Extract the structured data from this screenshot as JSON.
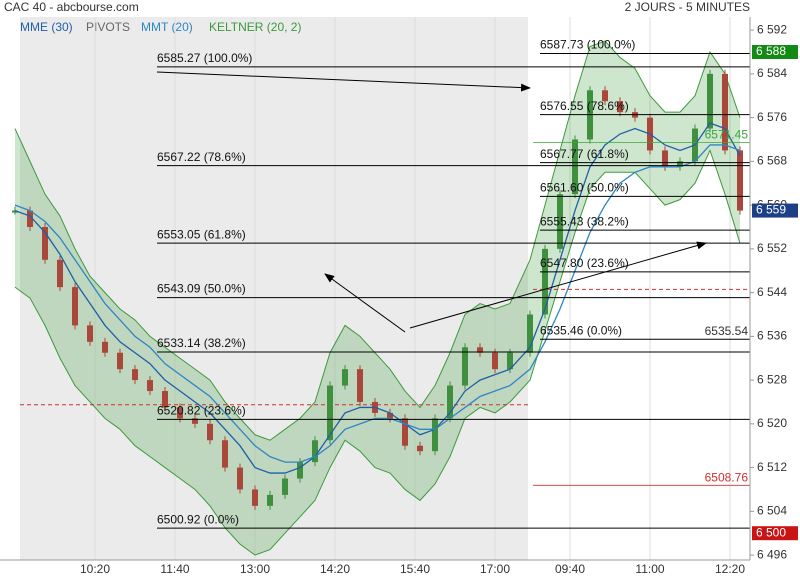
{
  "chart_data": {
    "type": "candlestick",
    "title": "CAC 40 - abcbourse.com",
    "subtitle": "2 JOURS - 5 MINUTES",
    "pivots_label": "PIVOTS",
    "up_color": "#3f8f3f",
    "down_color": "#a8473a",
    "x": [
      0,
      3,
      6,
      9,
      12,
      15,
      18,
      21,
      24,
      27,
      30,
      33,
      36,
      39,
      42,
      45,
      48,
      51,
      54,
      57,
      60,
      63,
      66,
      69,
      72,
      75,
      78,
      81,
      84,
      87,
      90,
      93,
      96,
      99,
      103,
      106,
      109,
      112,
      115,
      118,
      121,
      124,
      127,
      130,
      133,
      136,
      139,
      142,
      145
    ],
    "close": [
      6559,
      6556,
      6550,
      6545,
      6538,
      6535,
      6533,
      6530,
      6528,
      6526,
      6523,
      6521,
      6520,
      6517,
      6512,
      6508,
      6505,
      6507,
      6510,
      6513,
      6517,
      6527,
      6530,
      6524,
      6522,
      6521,
      6516,
      6515,
      6521,
      6527,
      6534,
      6533,
      6530,
      6533,
      6540,
      6552,
      6562,
      6572,
      6581,
      6579,
      6577,
      6576,
      6570,
      6567,
      6568,
      6574,
      6584,
      6570,
      6559
    ],
    "keltner": {
      "name": "KELTNER (20, 2)",
      "color": "#3c9a3c",
      "upper": [
        6574,
        6568,
        6562,
        6558,
        6552,
        6547,
        6544,
        6541,
        6539,
        6536,
        6534,
        6532,
        6530,
        6528,
        6524,
        6521,
        6518,
        6517,
        6519,
        6521,
        6524,
        6533,
        6538,
        6536,
        6533,
        6530,
        6526,
        6523,
        6527,
        6533,
        6540,
        6542,
        6541,
        6542,
        6550,
        6560,
        6570,
        6580,
        6589,
        6590,
        6587,
        6585,
        6580,
        6577,
        6577,
        6580,
        6588,
        6584,
        6576
      ],
      "lower": [
        6545,
        6543,
        6538,
        6532,
        6527,
        6524,
        6521,
        6519,
        6516,
        6514,
        6512,
        6510,
        6508,
        6505,
        6501,
        6498,
        6496,
        6497,
        6500,
        6503,
        6506,
        6512,
        6517,
        6515,
        6512,
        6511,
        6508,
        6506,
        6509,
        6514,
        6521,
        6523,
        6522,
        6524,
        6528,
        6537,
        6546,
        6555,
        6563,
        6566,
        6566,
        6566,
        6563,
        6560,
        6561,
        6564,
        6570,
        6562,
        6553
      ]
    },
    "series": [
      {
        "name": "MME (30)",
        "color": "#1f5fa8",
        "values": [
          6559,
          6558,
          6555,
          6551,
          6546,
          6542,
          6538,
          6535,
          6533,
          6531,
          6528,
          6526,
          6524,
          6522,
          6519,
          6516,
          6512,
          6511,
          6511,
          6512,
          6514,
          6518,
          6522,
          6523,
          6523,
          6522,
          6520,
          6518,
          6519,
          6522,
          6526,
          6528,
          6529,
          6530,
          6534,
          6541,
          6550,
          6559,
          6567,
          6571,
          6573,
          6574,
          6573,
          6571,
          6570,
          6571,
          6575,
          6574,
          6569
        ]
      },
      {
        "name": "MMT (20)",
        "color": "#2f86c4",
        "values": [
          6560,
          6559,
          6557,
          6554,
          6550,
          6546,
          6542,
          6539,
          6536,
          6534,
          6531,
          6529,
          6527,
          6525,
          6522,
          6519,
          6516,
          6514,
          6513,
          6513,
          6514,
          6516,
          6519,
          6520,
          6521,
          6521,
          6520,
          6519,
          6519,
          6521,
          6523,
          6525,
          6526,
          6527,
          6530,
          6535,
          6541,
          6548,
          6555,
          6560,
          6564,
          6566,
          6567,
          6567,
          6567,
          6568,
          6571,
          6571,
          6570
        ]
      }
    ],
    "fib_day1": [
      {
        "value": 6585.27,
        "label": "6585.27 (100.0%)"
      },
      {
        "value": 6567.22,
        "label": "6567.22 (78.6%)"
      },
      {
        "value": 6553.05,
        "label": "6553.05 (61.8%)"
      },
      {
        "value": 6543.09,
        "label": "6543.09 (50.0%)"
      },
      {
        "value": 6533.14,
        "label": "6533.14 (38.2%)"
      },
      {
        "value": 6520.82,
        "label": "6520.82 (23.6%)"
      },
      {
        "value": 6500.92,
        "label": "6500.92 (0.0%)"
      }
    ],
    "fib_day2": [
      {
        "value": 6587.73,
        "label": "6587.73 (100.0%)"
      },
      {
        "value": 6576.55,
        "label": "6576.55 (78.6%)"
      },
      {
        "value": 6567.77,
        "label": "6567.77 (61.8%)"
      },
      {
        "value": 6561.6,
        "label": "6561.60 (50.0%)"
      },
      {
        "value": 6555.43,
        "label": "6555.43 (38.2%)"
      },
      {
        "value": 6547.8,
        "label": "6547.80 (23.6%)"
      },
      {
        "value": 6535.46,
        "label": "6535.46 (0.0%)"
      }
    ],
    "levels": [
      {
        "value": 6571.45,
        "color": "#3aa83a"
      },
      {
        "value": 6535.54,
        "color": "#333333"
      },
      {
        "value": 6508.76,
        "color": "#d03030"
      }
    ],
    "dashed_levels": [
      6523.5,
      6544.6
    ],
    "badges": [
      {
        "value": 6588,
        "label": "6 588",
        "color": "#138a13"
      },
      {
        "value": 6559,
        "label": "6 559",
        "color": "#1c3f86"
      },
      {
        "value": 6500,
        "label": "6 500",
        "color": "#c81414"
      }
    ],
    "xlim": [
      -3,
      147
    ],
    "ylim": [
      6495.1,
      6594.4
    ],
    "xticks": [
      {
        "value": 16,
        "label": "10:20"
      },
      {
        "value": 32,
        "label": "11:40"
      },
      {
        "value": 48,
        "label": "13:00"
      },
      {
        "value": 64,
        "label": "14:20"
      },
      {
        "value": 80,
        "label": "15:40"
      },
      {
        "value": 96,
        "label": "17:00"
      },
      {
        "value": 111,
        "label": "09:40"
      },
      {
        "value": 127,
        "label": "11:00"
      },
      {
        "value": 143,
        "label": "12:20"
      }
    ],
    "yticks": [
      {
        "value": 6592,
        "label": "6 592"
      },
      {
        "value": 6584,
        "label": "6 584"
      },
      {
        "value": 6576,
        "label": "6 576"
      },
      {
        "value": 6568,
        "label": "6 568"
      },
      {
        "value": 6560,
        "label": "6 560"
      },
      {
        "value": 6552,
        "label": "6 552"
      },
      {
        "value": 6544,
        "label": "6 544"
      },
      {
        "value": 6536,
        "label": "6 536"
      },
      {
        "value": 6528,
        "label": "6 528"
      },
      {
        "value": 6520,
        "label": "6 520"
      },
      {
        "value": 6512,
        "label": "6 512"
      },
      {
        "value": 6504,
        "label": "6 504"
      },
      {
        "value": 6496,
        "label": "6 496"
      }
    ]
  }
}
